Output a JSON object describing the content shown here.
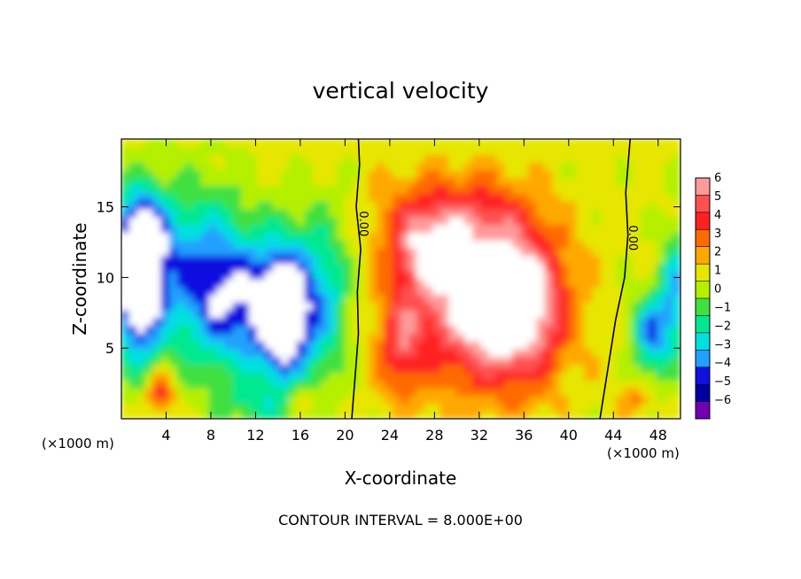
{
  "chart_data": {
    "type": "heatmap",
    "title": "vertical velocity",
    "xlabel": "X-coordinate",
    "ylabel": "Z-coordinate",
    "x_unit": "(×1000 m)",
    "xlim": [
      0,
      50
    ],
    "ylim": [
      0,
      19.8
    ],
    "x_ticks": [
      4,
      8,
      12,
      16,
      20,
      24,
      28,
      32,
      36,
      40,
      44,
      48
    ],
    "y_ticks": [
      5,
      10,
      15
    ],
    "colorbar": {
      "levels": [
        6,
        5,
        4,
        3,
        2,
        1,
        0,
        -1,
        -2,
        -3,
        -4,
        -5,
        -6
      ],
      "colors": [
        "#ff9a9a",
        "#ff5050",
        "#ff2020",
        "#ff6a00",
        "#ffa800",
        "#e6e600",
        "#b4f000",
        "#40e040",
        "#00e890",
        "#00e0e0",
        "#20a0ff",
        "#1010e0",
        "#0000a0",
        "#7000b0"
      ]
    },
    "contour_labels": [
      "0.00",
      "0.00"
    ],
    "footer": "CONTOUR INTERVAL = 8.000E+00",
    "blobs": [
      {
        "x": 1.5,
        "z": 9.5,
        "rx": 2.5,
        "rz": 6,
        "v": -9
      },
      {
        "x": 7,
        "z": 10,
        "rx": 5,
        "rz": 7,
        "v": -5
      },
      {
        "x": 11,
        "z": 8,
        "rx": 4,
        "rz": 6,
        "v": -4
      },
      {
        "x": 14.5,
        "z": 7.5,
        "rx": 2.6,
        "rz": 5.5,
        "v": -9
      },
      {
        "x": 18,
        "z": 8.5,
        "rx": 3,
        "rz": 7,
        "v": -4
      },
      {
        "x": 2,
        "z": 13,
        "rx": 3,
        "rz": 4,
        "v": -4
      },
      {
        "x": 3.5,
        "z": 2,
        "rx": 1.4,
        "rz": 1.8,
        "v": 4
      },
      {
        "x": 16,
        "z": 1.5,
        "rx": 1.5,
        "rz": 1.5,
        "v": 2
      },
      {
        "x": 30,
        "z": 9,
        "rx": 7,
        "rz": 7.5,
        "v": 5
      },
      {
        "x": 35.5,
        "z": 8,
        "rx": 5,
        "rz": 6,
        "v": 7
      },
      {
        "x": 27,
        "z": 12,
        "rx": 3,
        "rz": 3,
        "v": 3
      },
      {
        "x": 25,
        "z": 5,
        "rx": 2,
        "rz": 4,
        "v": 3
      },
      {
        "x": 30,
        "z": 14.5,
        "rx": 8,
        "rz": 3,
        "v": 2
      },
      {
        "x": 47.5,
        "z": 6,
        "rx": 2,
        "rz": 3.5,
        "v": -5
      },
      {
        "x": 49.5,
        "z": 9,
        "rx": 1.5,
        "rz": 5,
        "v": -4
      },
      {
        "x": 46,
        "z": 1.5,
        "rx": 1.5,
        "rz": 1.5,
        "v": 2
      },
      {
        "x": 12,
        "z": 1.0,
        "rx": 4,
        "rz": 1.5,
        "v": -2
      }
    ]
  }
}
